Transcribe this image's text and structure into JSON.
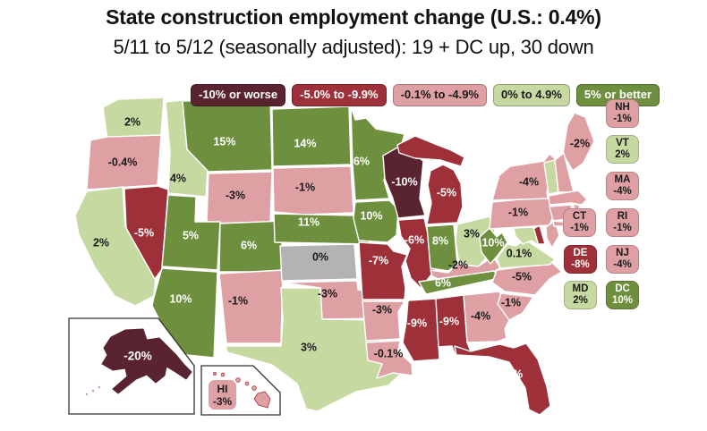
{
  "header": {
    "title": "State construction employment change (U.S.: 0.4%)",
    "subtitle": "5/11 to 5/12 (seasonally adjusted): 19 + DC up, 30 down"
  },
  "legend": [
    {
      "label": "-10% or worse",
      "category": "worse"
    },
    {
      "label": "-5.0% to -9.9%",
      "category": "neg5"
    },
    {
      "label": "-0.1% to -4.9%",
      "category": "neg01"
    },
    {
      "label": "0% to 4.9%",
      "category": "pos0"
    },
    {
      "label": "5% or better",
      "category": "pos5"
    }
  ],
  "colors": {
    "worse": "#5a2330",
    "neg5": "#9d3039",
    "neg01": "#dfa0a4",
    "pos0": "#c6d9a1",
    "pos5": "#6e8f3e",
    "zero": "#b3b3b3",
    "text_dark": "#1a1a1a",
    "text_light": "#ffffff",
    "state_border": "#ffffff",
    "inset_border": "#333333"
  },
  "insets": {
    "hi": {
      "abbr": "HI",
      "value": "-3%",
      "category": "neg01"
    },
    "ak_label": "-20%"
  },
  "chart_data": {
    "type": "heatmap",
    "subtype": "us-state-choropleth",
    "title": "State construction employment change (U.S.: 0.4%)",
    "subtitle": "5/11 to 5/12 (seasonally adjusted): 19 + DC up, 30 down",
    "us_overall_change_pct": 0.4,
    "up_count_note": "19 + DC up, 30 down",
    "legend_buckets": [
      "-10% or worse",
      "-5.0% to -9.9%",
      "-0.1% to -4.9%",
      "0% to 4.9%",
      "5% or better"
    ],
    "states": [
      {
        "state": "WA",
        "label": "2%",
        "value": 2,
        "category": "pos0"
      },
      {
        "state": "OR",
        "label": "-0.4%",
        "value": -0.4,
        "category": "neg01"
      },
      {
        "state": "CA",
        "label": "2%",
        "value": 2,
        "category": "pos0"
      },
      {
        "state": "ID",
        "label": "4%",
        "value": 4,
        "category": "pos0"
      },
      {
        "state": "NV",
        "label": "-5%",
        "value": -5,
        "category": "neg5"
      },
      {
        "state": "MT",
        "label": "15%",
        "value": 15,
        "category": "pos5"
      },
      {
        "state": "WY",
        "label": "-3%",
        "value": -3,
        "category": "neg01"
      },
      {
        "state": "UT",
        "label": "5%",
        "value": 5,
        "category": "pos5"
      },
      {
        "state": "CO",
        "label": "6%",
        "value": 6,
        "category": "pos5"
      },
      {
        "state": "AZ",
        "label": "10%",
        "value": 10,
        "category": "pos5"
      },
      {
        "state": "NM",
        "label": "-1%",
        "value": -1,
        "category": "neg01"
      },
      {
        "state": "ND",
        "label": "14%",
        "value": 14,
        "category": "pos5"
      },
      {
        "state": "SD",
        "label": "-1%",
        "value": -1,
        "category": "neg01"
      },
      {
        "state": "NE",
        "label": "11%",
        "value": 11,
        "category": "pos5"
      },
      {
        "state": "KS",
        "label": "0%",
        "value": 0,
        "category": "zero"
      },
      {
        "state": "OK",
        "label": "-3%",
        "value": -3,
        "category": "neg01"
      },
      {
        "state": "TX",
        "label": "3%",
        "value": 3,
        "category": "pos0"
      },
      {
        "state": "MN",
        "label": "6%",
        "value": 6,
        "category": "pos5"
      },
      {
        "state": "IA",
        "label": "10%",
        "value": 10,
        "category": "pos5"
      },
      {
        "state": "MO",
        "label": "-7%",
        "value": -7,
        "category": "neg5"
      },
      {
        "state": "AR",
        "label": "-3%",
        "value": -3,
        "category": "neg01"
      },
      {
        "state": "LA",
        "label": "-0.1%",
        "value": -0.1,
        "category": "neg01"
      },
      {
        "state": "WI",
        "label": "-10%",
        "value": -10,
        "category": "worse"
      },
      {
        "state": "IL",
        "label": "-6%",
        "value": -6,
        "category": "neg5"
      },
      {
        "state": "MI",
        "label": "-5%",
        "value": -5,
        "category": "neg5"
      },
      {
        "state": "IN",
        "label": "8%",
        "value": 8,
        "category": "pos5"
      },
      {
        "state": "OH",
        "label": "3%",
        "value": 3,
        "category": "pos0"
      },
      {
        "state": "KY",
        "label": "-2%",
        "value": -2,
        "category": "neg01"
      },
      {
        "state": "TN",
        "label": "6%",
        "value": 6,
        "category": "pos5"
      },
      {
        "state": "MS",
        "label": "-9%",
        "value": -9,
        "category": "neg5"
      },
      {
        "state": "AL",
        "label": "-9%",
        "value": -9,
        "category": "neg5"
      },
      {
        "state": "GA",
        "label": "-4%",
        "value": -4,
        "category": "neg01"
      },
      {
        "state": "FL",
        "label": "-7%",
        "value": -7,
        "category": "neg5"
      },
      {
        "state": "SC",
        "label": "-1%",
        "value": -1,
        "category": "neg01"
      },
      {
        "state": "NC",
        "label": "-5%",
        "value": -5,
        "category": "neg01"
      },
      {
        "state": "VA",
        "label": "0.1%",
        "value": 0.1,
        "category": "pos0"
      },
      {
        "state": "WV",
        "label": "10%",
        "value": 10,
        "category": "pos5"
      },
      {
        "state": "PA",
        "label": "-1%",
        "value": -1,
        "category": "neg01"
      },
      {
        "state": "NY",
        "label": "-4%",
        "value": -4,
        "category": "neg01"
      },
      {
        "state": "ME",
        "label": "-2%",
        "value": -2,
        "category": "neg01"
      },
      {
        "state": "VT",
        "label": "2%",
        "value": 2,
        "category": "pos0"
      },
      {
        "state": "NH",
        "label": "-1%",
        "value": -1,
        "category": "neg01"
      },
      {
        "state": "MA",
        "label": "-4%",
        "value": -4,
        "category": "neg01"
      },
      {
        "state": "CT",
        "label": "-1%",
        "value": -1,
        "category": "neg01"
      },
      {
        "state": "RI",
        "label": "-1%",
        "value": -1,
        "category": "neg01"
      },
      {
        "state": "NJ",
        "label": "-4%",
        "value": -4,
        "category": "neg01"
      },
      {
        "state": "DE",
        "label": "-8%",
        "value": -8,
        "category": "neg5"
      },
      {
        "state": "MD",
        "label": "2%",
        "value": 2,
        "category": "pos0"
      },
      {
        "state": "DC",
        "label": "10%",
        "value": 10,
        "category": "pos5"
      },
      {
        "state": "AK",
        "label": "-20%",
        "value": -20,
        "category": "worse"
      },
      {
        "state": "HI",
        "label": "-3%",
        "value": -3,
        "category": "neg01"
      }
    ]
  }
}
